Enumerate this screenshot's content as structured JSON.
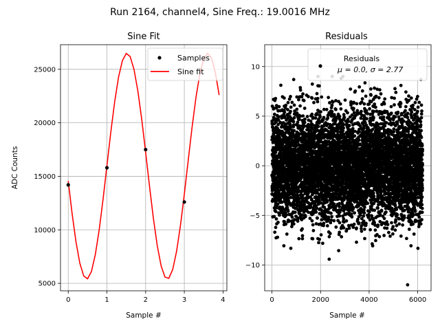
{
  "figure": {
    "suptitle": "Run 2164, channel4, Sine Freq.: 19.0016 MHz"
  },
  "chart_data": [
    {
      "type": "line",
      "title": "Sine Fit",
      "xlabel": "Sample #",
      "ylabel": "ADC Counts",
      "xlim": [
        -0.2,
        4.1
      ],
      "ylim": [
        4300,
        27300
      ],
      "xticks": [
        0,
        1,
        2,
        3,
        4
      ],
      "yticks": [
        5000,
        10000,
        15000,
        20000,
        25000
      ],
      "grid": true,
      "legend_position": "top-right",
      "series": [
        {
          "name": "Samples",
          "kind": "scatter",
          "color": "#000000",
          "x": [
            0,
            1,
            2,
            3
          ],
          "y": [
            14200,
            15800,
            17500,
            12600
          ]
        },
        {
          "name": "Sine fit",
          "kind": "line",
          "color": "#ff0000",
          "model": {
            "offset": 15950,
            "amplitude": 10550,
            "period": 2.085,
            "peak_x": 1.52
          },
          "x_range": [
            0,
            3.9
          ]
        }
      ]
    },
    {
      "type": "scatter",
      "title": "Residuals",
      "xlabel": "Sample #",
      "ylabel": "",
      "xlim": [
        -300,
        6550
      ],
      "ylim": [
        -12.6,
        12.2
      ],
      "xticks": [
        0,
        2000,
        4000,
        6000
      ],
      "yticks": [
        -10,
        -5,
        0,
        5,
        10
      ],
      "grid": true,
      "legend_position": "top-right",
      "legend_title": "Residuals",
      "legend_stats": "μ = 0.0, σ = 2.77",
      "series": [
        {
          "name": "Residuals",
          "color": "#000000",
          "mean": 0.0,
          "std": 2.77,
          "n_points": 6200,
          "x_range": [
            0,
            6200
          ],
          "min": -12.0,
          "max": 9.0
        }
      ]
    }
  ]
}
